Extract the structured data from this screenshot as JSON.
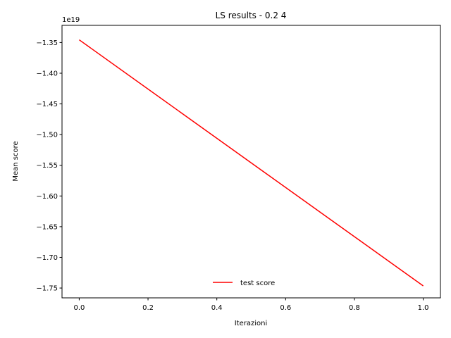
{
  "chart_data": {
    "type": "line",
    "title": "LS results - 0.2 4",
    "xlabel": "Iterazioni",
    "ylabel": "Mean score",
    "offset_label": "1e19",
    "xlim": [
      -0.05,
      1.05
    ],
    "ylim": [
      -1.766,
      -1.322
    ],
    "xticks": [
      0.0,
      0.2,
      0.4,
      0.6,
      0.8,
      1.0
    ],
    "xtick_labels": [
      "0.0",
      "0.2",
      "0.4",
      "0.6",
      "0.8",
      "1.0"
    ],
    "yticks": [
      -1.35,
      -1.4,
      -1.45,
      -1.5,
      -1.55,
      -1.6,
      -1.65,
      -1.7,
      -1.75
    ],
    "ytick_labels": [
      "−1.35",
      "−1.40",
      "−1.45",
      "−1.50",
      "−1.55",
      "−1.60",
      "−1.65",
      "−1.70",
      "−1.75"
    ],
    "series": [
      {
        "name": "test score",
        "color": "#ff0000",
        "x": [
          0,
          1
        ],
        "y": [
          -1.3456,
          -1.7465
        ]
      }
    ],
    "legend": "lower-center",
    "grid": false
  }
}
